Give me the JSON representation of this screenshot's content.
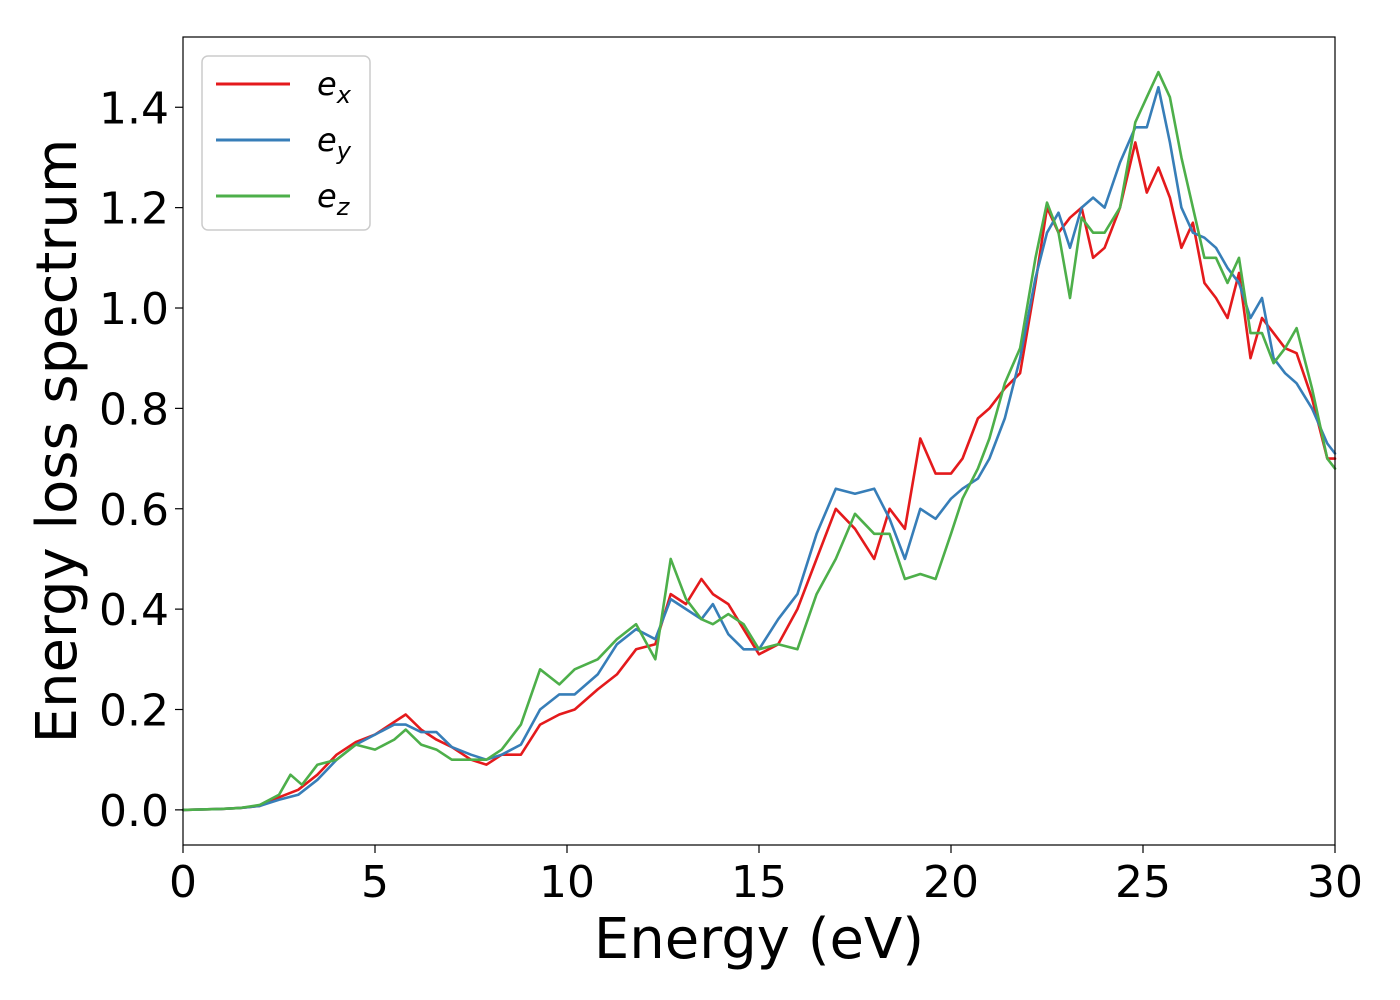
{
  "chart_data": {
    "type": "line",
    "xlabel": "Energy (eV)",
    "ylabel": "Energy loss spectrum",
    "xlim": [
      0,
      30
    ],
    "ylim": [
      -0.07,
      1.54
    ],
    "xticks": [
      0,
      5,
      10,
      15,
      20,
      25,
      30
    ],
    "xtick_labels": [
      "0",
      "5",
      "10",
      "15",
      "20",
      "25",
      "30"
    ],
    "yticks": [
      0.0,
      0.2,
      0.4,
      0.6,
      0.8,
      1.0,
      1.2,
      1.4
    ],
    "ytick_labels": [
      "0.0",
      "0.2",
      "0.4",
      "0.6",
      "0.8",
      "1.0",
      "1.2",
      "1.4"
    ],
    "grid": false,
    "legend_position": "top-left",
    "series": [
      {
        "name": "e",
        "subscript": "x",
        "color": "#e41a1c",
        "x": [
          0,
          1,
          1.5,
          2,
          2.5,
          3,
          3.5,
          4,
          4.5,
          5,
          5.5,
          5.8,
          6.2,
          6.6,
          7,
          7.5,
          7.9,
          8.3,
          8.8,
          9.3,
          9.8,
          10.2,
          10.8,
          11.3,
          11.8,
          12.3,
          12.7,
          13.1,
          13.5,
          13.8,
          14.2,
          14.6,
          15,
          15.5,
          16,
          16.5,
          17,
          17.5,
          18,
          18.4,
          18.8,
          19.2,
          19.6,
          20,
          20.3,
          20.7,
          21,
          21.4,
          21.8,
          22.2,
          22.5,
          22.8,
          23.1,
          23.4,
          23.7,
          24,
          24.4,
          24.8,
          25.1,
          25.4,
          25.7,
          26,
          26.3,
          26.6,
          26.9,
          27.2,
          27.5,
          27.8,
          28.1,
          28.4,
          28.7,
          29,
          29.4,
          29.8,
          30
        ],
        "y": [
          0,
          0.002,
          0.004,
          0.008,
          0.025,
          0.04,
          0.07,
          0.11,
          0.135,
          0.15,
          0.175,
          0.19,
          0.16,
          0.14,
          0.125,
          0.1,
          0.09,
          0.11,
          0.11,
          0.17,
          0.19,
          0.2,
          0.24,
          0.27,
          0.32,
          0.33,
          0.43,
          0.41,
          0.46,
          0.43,
          0.41,
          0.36,
          0.31,
          0.33,
          0.4,
          0.5,
          0.6,
          0.56,
          0.5,
          0.6,
          0.56,
          0.74,
          0.67,
          0.67,
          0.7,
          0.78,
          0.8,
          0.84,
          0.87,
          1.05,
          1.2,
          1.15,
          1.18,
          1.2,
          1.1,
          1.12,
          1.2,
          1.33,
          1.23,
          1.28,
          1.22,
          1.12,
          1.17,
          1.05,
          1.02,
          0.98,
          1.07,
          0.9,
          0.98,
          0.95,
          0.92,
          0.91,
          0.82,
          0.7,
          0.7
        ]
      },
      {
        "name": "e",
        "subscript": "y",
        "color": "#377eb8",
        "x": [
          0,
          1,
          1.5,
          2,
          2.5,
          3,
          3.5,
          4,
          4.5,
          5,
          5.5,
          5.8,
          6.2,
          6.6,
          7,
          7.5,
          7.9,
          8.3,
          8.8,
          9.3,
          9.8,
          10.2,
          10.8,
          11.3,
          11.8,
          12.3,
          12.7,
          13.1,
          13.5,
          13.8,
          14.2,
          14.6,
          15,
          15.5,
          16,
          16.5,
          17,
          17.5,
          18,
          18.4,
          18.8,
          19.2,
          19.6,
          20,
          20.3,
          20.7,
          21,
          21.4,
          21.8,
          22.2,
          22.5,
          22.8,
          23.1,
          23.4,
          23.7,
          24,
          24.4,
          24.8,
          25.1,
          25.4,
          25.7,
          26,
          26.3,
          26.6,
          26.9,
          27.2,
          27.5,
          27.8,
          28.1,
          28.4,
          28.7,
          29,
          29.4,
          29.8,
          30
        ],
        "y": [
          0,
          0.002,
          0.004,
          0.008,
          0.02,
          0.03,
          0.06,
          0.1,
          0.13,
          0.15,
          0.17,
          0.17,
          0.155,
          0.155,
          0.125,
          0.11,
          0.1,
          0.11,
          0.13,
          0.2,
          0.23,
          0.23,
          0.27,
          0.33,
          0.36,
          0.34,
          0.42,
          0.4,
          0.38,
          0.41,
          0.35,
          0.32,
          0.32,
          0.38,
          0.43,
          0.55,
          0.64,
          0.63,
          0.64,
          0.58,
          0.5,
          0.6,
          0.58,
          0.62,
          0.64,
          0.66,
          0.7,
          0.78,
          0.9,
          1.06,
          1.15,
          1.19,
          1.12,
          1.2,
          1.22,
          1.2,
          1.29,
          1.36,
          1.36,
          1.44,
          1.33,
          1.2,
          1.15,
          1.14,
          1.12,
          1.08,
          1.05,
          0.98,
          1.02,
          0.9,
          0.87,
          0.85,
          0.8,
          0.73,
          0.71
        ]
      },
      {
        "name": "e",
        "subscript": "z",
        "color": "#4daf4a",
        "x": [
          0,
          1,
          1.5,
          2,
          2.5,
          2.8,
          3.1,
          3.5,
          4,
          4.5,
          5,
          5.5,
          5.8,
          6.2,
          6.6,
          7,
          7.5,
          7.9,
          8.3,
          8.8,
          9.3,
          9.8,
          10.2,
          10.8,
          11.3,
          11.8,
          12.3,
          12.7,
          13.1,
          13.5,
          13.8,
          14.2,
          14.6,
          15,
          15.5,
          16,
          16.5,
          17,
          17.5,
          18,
          18.4,
          18.8,
          19.2,
          19.6,
          20,
          20.3,
          20.7,
          21,
          21.4,
          21.8,
          22.2,
          22.5,
          22.8,
          23.1,
          23.4,
          23.7,
          24,
          24.4,
          24.8,
          25.1,
          25.4,
          25.7,
          26,
          26.3,
          26.6,
          26.9,
          27.2,
          27.5,
          27.8,
          28.1,
          28.4,
          28.7,
          29,
          29.4,
          29.8,
          30
        ],
        "y": [
          0,
          0.002,
          0.004,
          0.01,
          0.03,
          0.07,
          0.05,
          0.09,
          0.1,
          0.13,
          0.12,
          0.14,
          0.16,
          0.13,
          0.12,
          0.1,
          0.1,
          0.1,
          0.12,
          0.17,
          0.28,
          0.25,
          0.28,
          0.3,
          0.34,
          0.37,
          0.3,
          0.5,
          0.42,
          0.38,
          0.37,
          0.39,
          0.37,
          0.32,
          0.33,
          0.32,
          0.43,
          0.5,
          0.59,
          0.55,
          0.55,
          0.46,
          0.47,
          0.46,
          0.55,
          0.62,
          0.68,
          0.74,
          0.85,
          0.92,
          1.1,
          1.21,
          1.15,
          1.02,
          1.18,
          1.15,
          1.15,
          1.2,
          1.37,
          1.42,
          1.47,
          1.42,
          1.3,
          1.2,
          1.1,
          1.1,
          1.05,
          1.1,
          0.95,
          0.95,
          0.89,
          0.92,
          0.96,
          0.84,
          0.7,
          0.68
        ]
      }
    ]
  }
}
